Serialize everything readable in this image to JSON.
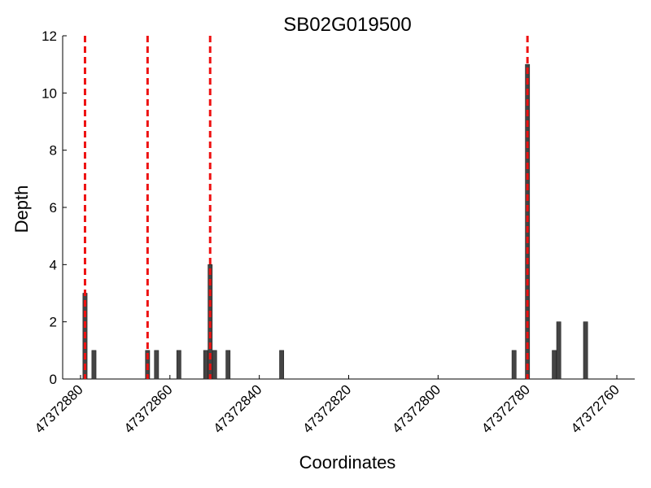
{
  "chart_data": {
    "type": "bar",
    "title": "SB02G019500",
    "xlabel": "Coordinates",
    "ylabel": "Depth",
    "xlim": [
      47372884,
      47372756
    ],
    "x_reversed": true,
    "ylim": [
      0,
      12
    ],
    "xticks": [
      47372880,
      47372860,
      47372840,
      47372820,
      47372800,
      47372780,
      47372760
    ],
    "xtick_labels": [
      "47372880",
      "47372860",
      "47372840",
      "47372820",
      "47372800",
      "47372780",
      "47372760"
    ],
    "yticks": [
      0,
      2,
      4,
      6,
      8,
      10,
      12
    ],
    "ytick_labels": [
      "0",
      "2",
      "4",
      "6",
      "8",
      "10",
      "12"
    ],
    "grid": false,
    "bar_color": "#444444",
    "marker_color": "#ee1111",
    "bars": [
      {
        "x": 47372879,
        "depth": 3
      },
      {
        "x": 47372877,
        "depth": 1
      },
      {
        "x": 47372865,
        "depth": 1
      },
      {
        "x": 47372863,
        "depth": 1
      },
      {
        "x": 47372858,
        "depth": 1
      },
      {
        "x": 47372852,
        "depth": 1
      },
      {
        "x": 47372851,
        "depth": 4
      },
      {
        "x": 47372850,
        "depth": 1
      },
      {
        "x": 47372847,
        "depth": 1
      },
      {
        "x": 47372835,
        "depth": 1
      },
      {
        "x": 47372783,
        "depth": 1
      },
      {
        "x": 47372780,
        "depth": 11
      },
      {
        "x": 47372774,
        "depth": 1
      },
      {
        "x": 47372773,
        "depth": 2
      },
      {
        "x": 47372767,
        "depth": 2
      }
    ],
    "markers": [
      47372879,
      47372865,
      47372851,
      47372780
    ]
  }
}
